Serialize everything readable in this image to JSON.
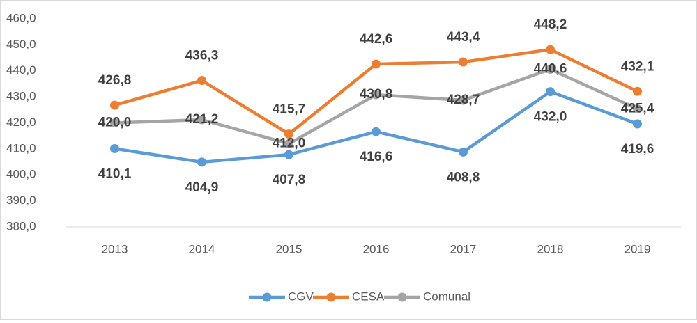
{
  "chart_data": {
    "type": "line",
    "categories": [
      "2013",
      "2014",
      "2015",
      "2016",
      "2017",
      "2018",
      "2019"
    ],
    "series": [
      {
        "name": "CGV",
        "color": "#5b9bd5",
        "values": [
          410.1,
          404.9,
          407.8,
          416.6,
          408.8,
          432.0,
          419.6
        ],
        "value_labels": [
          "410,1",
          "404,9",
          "407,8",
          "416,6",
          "408,8",
          "432,0",
          "419,6"
        ]
      },
      {
        "name": "CESA",
        "color": "#ed7d31",
        "values": [
          426.8,
          436.3,
          415.7,
          442.6,
          443.4,
          448.2,
          432.1
        ],
        "value_labels": [
          "426,8",
          "436,3",
          "415,7",
          "442,6",
          "443,4",
          "448,2",
          "432,1"
        ]
      },
      {
        "name": "Comunal",
        "color": "#a5a5a5",
        "values": [
          420.0,
          421.2,
          412.0,
          430.8,
          428.7,
          440.6,
          425.4
        ],
        "value_labels": [
          "420,0",
          "421,2",
          "412,0",
          "430,8",
          "428,7",
          "440,6",
          "425,4"
        ]
      }
    ],
    "ylim": [
      380,
      460
    ],
    "yticks": [
      {
        "value": 380,
        "label": "380,0"
      },
      {
        "value": 390,
        "label": "390,0"
      },
      {
        "value": 400,
        "label": "400,0"
      },
      {
        "value": 410,
        "label": "410,0"
      },
      {
        "value": 420,
        "label": "420,0"
      },
      {
        "value": 430,
        "label": "430,0"
      },
      {
        "value": 440,
        "label": "440,0"
      },
      {
        "value": 450,
        "label": "450,0"
      },
      {
        "value": 460,
        "label": "460,0"
      }
    ],
    "grid": false,
    "legend": "bottom"
  }
}
